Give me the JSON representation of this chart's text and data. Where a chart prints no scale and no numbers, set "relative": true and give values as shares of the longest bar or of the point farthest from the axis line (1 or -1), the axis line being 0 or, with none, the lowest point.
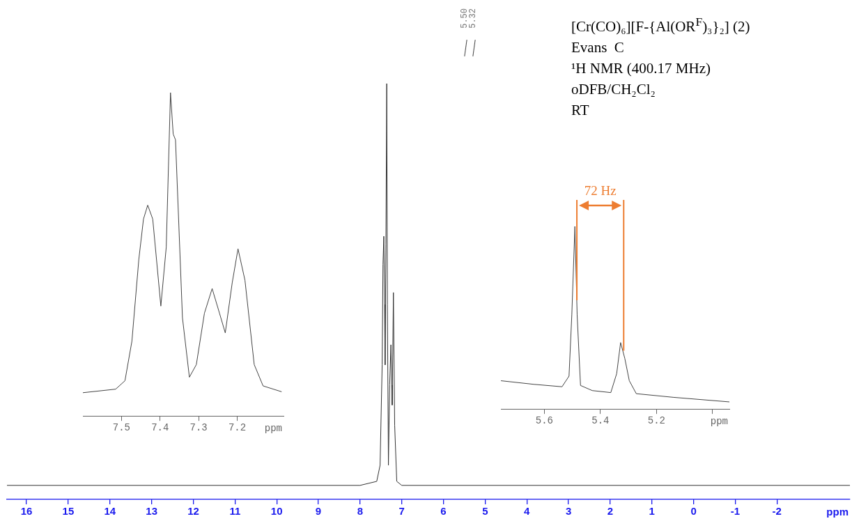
{
  "chart_data": [
    {
      "type": "line",
      "title": "[Cr(CO)₆][F-{Al(OR$^{F}$)₃}₂] (2)",
      "subtitle": "Evans  C\n¹H NMR (400.17 MHz)\noDFB/CH₂Cl₂\nRT",
      "annotations": [
        "5.50",
        "5.32"
      ],
      "relative": true,
      "color": "#333333",
      "xlabel": "ppm",
      "xlim": [
        16.47,
        -3.75
      ],
      "xticks": [
        16,
        15,
        14,
        13,
        12,
        11,
        10,
        9,
        8,
        7,
        6,
        5,
        4,
        3,
        2,
        1,
        0,
        -1,
        -2
      ],
      "x": [
        16.47,
        8.0,
        7.6,
        7.52,
        7.47,
        7.45,
        7.43,
        7.41,
        7.4,
        7.38,
        7.36,
        7.345,
        7.32,
        7.29,
        7.26,
        7.24,
        7.23,
        7.2,
        7.17,
        7.12,
        7.0,
        -3.75
      ],
      "values": [
        0,
        0,
        0.01,
        0.05,
        0.3,
        0.55,
        0.62,
        0.45,
        0.3,
        0.6,
        1.0,
        0.45,
        0.05,
        0.25,
        0.35,
        0.25,
        0.2,
        0.48,
        0.15,
        0.01,
        0,
        0
      ]
    },
    {
      "type": "line",
      "relative": true,
      "color": "#444444",
      "xlabel": "ppm",
      "xlim": [
        7.6,
        7.08
      ],
      "xticks": [
        7.5,
        7.4,
        7.3,
        7.2
      ],
      "x": [
        7.6,
        7.515,
        7.491,
        7.473,
        7.455,
        7.443,
        7.432,
        7.419,
        7.398,
        7.384,
        7.373,
        7.366,
        7.36,
        7.342,
        7.324,
        7.306,
        7.285,
        7.265,
        7.246,
        7.231,
        7.213,
        7.198,
        7.18,
        7.156,
        7.133,
        7.085
      ],
      "values": [
        0.072,
        0.083,
        0.109,
        0.231,
        0.485,
        0.609,
        0.652,
        0.609,
        0.34,
        0.522,
        1.0,
        0.872,
        0.854,
        0.304,
        0.12,
        0.159,
        0.318,
        0.394,
        0.318,
        0.257,
        0.412,
        0.517,
        0.42,
        0.159,
        0.093,
        0.075
      ]
    },
    {
      "type": "line",
      "relative": true,
      "color": "#444444",
      "xlabel": "ppm",
      "xlim": [
        5.755,
        4.94
      ],
      "xticks": [
        5.6,
        5.4,
        5.2,
        {
          "value": 5.0,
          "label": null
        }
      ],
      "x": [
        5.755,
        5.636,
        5.537,
        5.512,
        5.502,
        5.491,
        5.483,
        5.471,
        5.429,
        5.363,
        5.342,
        5.328,
        5.313,
        5.297,
        5.272,
        5.139,
        4.94
      ],
      "values": [
        0.155,
        0.135,
        0.122,
        0.18,
        0.516,
        1.0,
        0.516,
        0.129,
        0.101,
        0.09,
        0.194,
        0.364,
        0.277,
        0.155,
        0.084,
        0.064,
        0.039
      ],
      "ref_lines": [
        {
          "axis": "x",
          "value": 5.484,
          "color": "#ed7d31"
        },
        {
          "axis": "x",
          "value": 5.317,
          "color": "#ed7d31"
        }
      ],
      "annotations": [
        "72 Hz"
      ]
    }
  ]
}
